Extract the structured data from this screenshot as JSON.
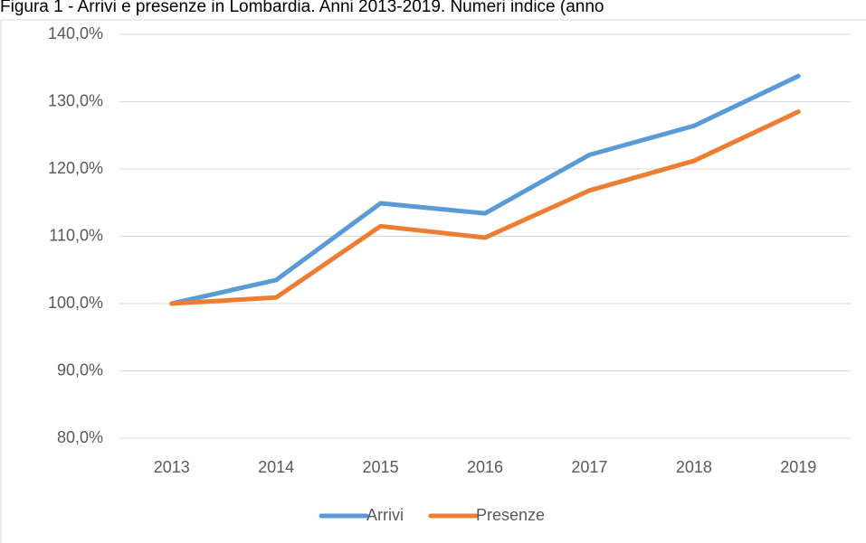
{
  "chart_data": {
    "type": "line",
    "title": "Figura 1 - Arrivi e presenze in Lombardia. Anni 2013-2019. Numeri indice (anno",
    "categories": [
      "2013",
      "2014",
      "2015",
      "2016",
      "2017",
      "2018",
      "2019"
    ],
    "series": [
      {
        "name": "Arrivi",
        "color": "#5b9bd5",
        "values": [
          100,
          103.5,
          114.9,
          113.4,
          122.1,
          126.4,
          133.8
        ]
      },
      {
        "name": "Presenze",
        "color": "#ed7d31",
        "values": [
          100,
          100.9,
          111.5,
          109.8,
          116.8,
          121.2,
          128.5
        ]
      }
    ],
    "ylim": [
      80,
      140
    ],
    "yticks": [
      {
        "value": 80,
        "label": "80,0%"
      },
      {
        "value": 90,
        "label": "90,0%"
      },
      {
        "value": 100,
        "label": "100,0%"
      },
      {
        "value": 110,
        "label": "110,0%"
      },
      {
        "value": 120,
        "label": "120,0%"
      },
      {
        "value": 130,
        "label": "130,0%"
      },
      {
        "value": 140,
        "label": "140,0%"
      }
    ],
    "grid": true,
    "legend": "bottom"
  }
}
